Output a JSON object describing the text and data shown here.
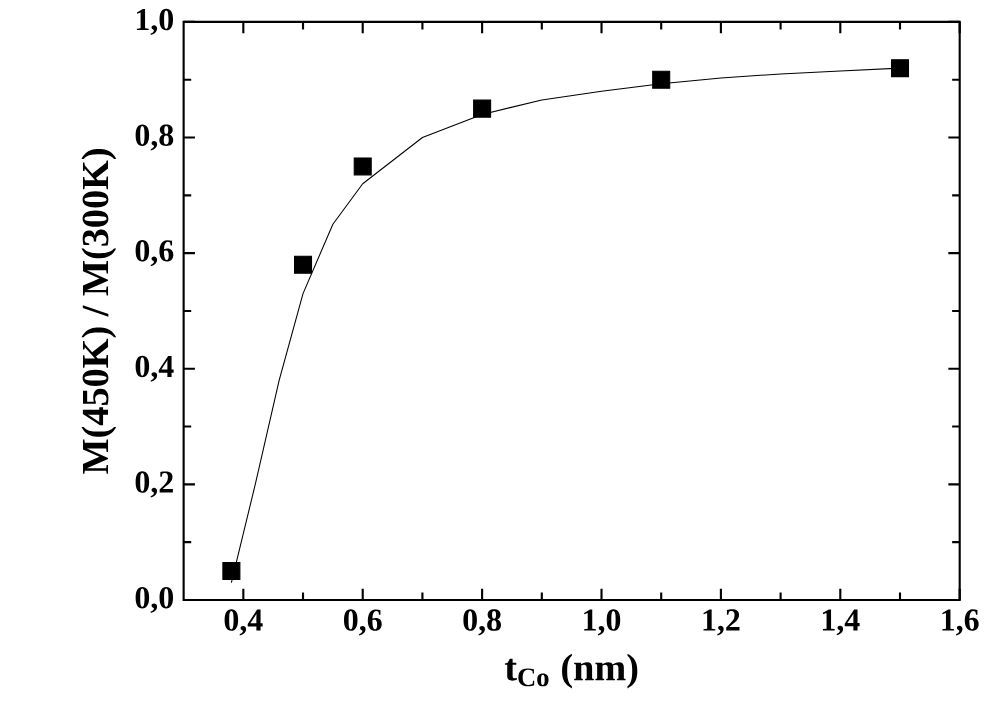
{
  "chart_data": {
    "type": "scatter",
    "xlabel": "t$_{Co}$ (nm)",
    "ylabel": "M(450K) / M(300K)",
    "xlim": [
      0.3,
      1.6
    ],
    "ylim": [
      0.0,
      1.0
    ],
    "xticks": [
      {
        "value": 0.4,
        "label": "0,4"
      },
      {
        "value": 0.6,
        "label": "0,6"
      },
      {
        "value": 0.8,
        "label": "0,8"
      },
      {
        "value": 1.0,
        "label": "1,0"
      },
      {
        "value": 1.2,
        "label": "1,2"
      },
      {
        "value": 1.4,
        "label": "1,4"
      },
      {
        "value": 1.6,
        "label": "1,6"
      }
    ],
    "yticks": [
      {
        "value": 0.0,
        "label": "0,0"
      },
      {
        "value": 0.2,
        "label": "0,2"
      },
      {
        "value": 0.4,
        "label": "0,4"
      },
      {
        "value": 0.6,
        "label": "0,6"
      },
      {
        "value": 0.8,
        "label": "0,8"
      },
      {
        "value": 1.0,
        "label": "1,0"
      }
    ],
    "series": [
      {
        "marker": "square",
        "color": "#000000",
        "x": [
          0.38,
          0.5,
          0.6,
          0.8,
          1.1,
          1.5
        ],
        "values": [
          0.05,
          0.58,
          0.75,
          0.85,
          0.9,
          0.92
        ]
      },
      {
        "type": "line",
        "marker": "none",
        "line_style": "solid",
        "color": "#000000",
        "x": [
          0.38,
          0.42,
          0.46,
          0.5,
          0.55,
          0.6,
          0.7,
          0.8,
          0.9,
          1.0,
          1.1,
          1.2,
          1.3,
          1.4,
          1.5
        ],
        "values": [
          0.03,
          0.2,
          0.38,
          0.53,
          0.65,
          0.72,
          0.8,
          0.84,
          0.865,
          0.88,
          0.893,
          0.903,
          0.91,
          0.915,
          0.92
        ]
      }
    ],
    "grid": false,
    "legend": false
  }
}
